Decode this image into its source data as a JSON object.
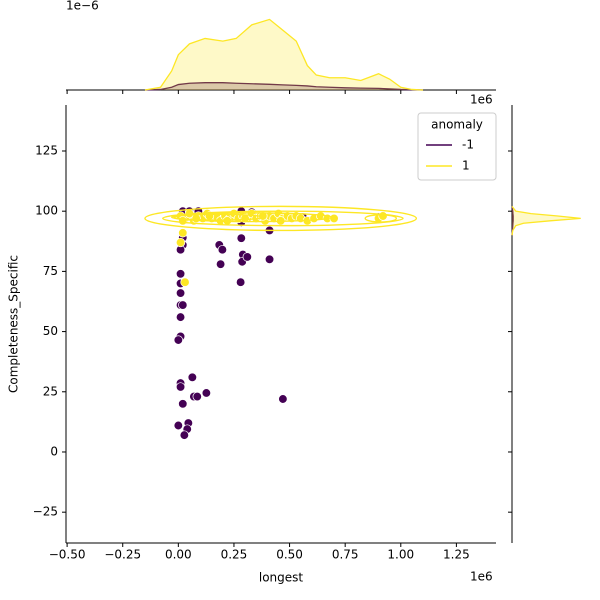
{
  "chart_data": {
    "type": "scatter",
    "x_label": "longest",
    "y_label": "Completeness_Specific",
    "x_offset": "1e6",
    "xlim": [
      -0.505,
      1.428
    ],
    "ylim": [
      -37.8,
      144.1
    ],
    "xticks": [
      {
        "value": -0.5,
        "label": "−0.50"
      },
      {
        "value": -0.25,
        "label": "−0.25"
      },
      {
        "value": 0,
        "label": "0.00"
      },
      0.25,
      {
        "value": 0.5,
        "label": "0.50"
      },
      0.75,
      {
        "value": 1,
        "label": "1.00"
      },
      1.25
    ],
    "yticks": [
      {
        "value": -25,
        "label": "−25"
      },
      0,
      25,
      50,
      75,
      100,
      125
    ],
    "legend": {
      "title": "anomaly",
      "loc": "upper right"
    },
    "series": [
      {
        "name": "-1",
        "color": "#440154",
        "x": [
          0.02,
          0.05,
          0.09,
          0.02,
          0.02,
          0.01,
          0.01,
          0.01,
          0.01,
          0.01,
          0.02,
          0.01,
          0.01,
          0,
          0.01,
          0.01,
          0.02,
          0.063,
          0.07,
          0.085,
          0.126,
          0,
          0.045,
          0.04,
          0.027,
          0.184,
          0.198,
          0.19,
          0.283,
          0.283,
          0.29,
          0.287,
          0.31,
          0.28,
          0.283,
          0.41,
          0.41,
          0.56,
          0.47,
          0.33,
          0.9
        ],
        "values": [
          100,
          100,
          100,
          89,
          86,
          84,
          74,
          70,
          66,
          61,
          61,
          56,
          48,
          46.5,
          28.6,
          27,
          20,
          31,
          23,
          23,
          24.5,
          11,
          12,
          9.5,
          7,
          86,
          84,
          78,
          95.4,
          88.8,
          82,
          79,
          81,
          70.5,
          100,
          92,
          80,
          97.5,
          22,
          99.6,
          97.5
        ]
      },
      {
        "name": "1",
        "color": "#fde725",
        "x": [
          0.01,
          0.03,
          0.05,
          0.07,
          0.09,
          0.11,
          0.13,
          0.15,
          0.17,
          0.19,
          0.21,
          0.23,
          0.25,
          0.27,
          0.29,
          0.31,
          0.33,
          0.35,
          0.37,
          0.39,
          0.41,
          0.43,
          0.45,
          0.47,
          0.49,
          0.51,
          0.53,
          0.55,
          0.58,
          0.61,
          0.64,
          0.67,
          0.7,
          0.9,
          0.92,
          0.02,
          0.08,
          0.14,
          0.22,
          0.3,
          0.38,
          0.46,
          0.02,
          0.01,
          0.03
        ],
        "values": [
          98,
          97,
          99,
          96,
          98,
          97,
          99,
          97,
          98,
          96,
          98,
          97,
          99,
          97,
          98,
          97,
          99,
          97,
          98,
          96,
          98,
          97,
          99,
          97,
          98,
          97,
          98,
          97,
          96,
          97,
          98,
          97,
          97,
          97,
          98,
          96,
          97,
          98,
          96,
          97,
          98,
          96,
          91,
          87,
          70.5
        ]
      }
    ],
    "contours": {
      "series": 1,
      "ellipses": [
        {
          "cx": 0.46,
          "cy": 97,
          "rx": 0.61,
          "ry": 5
        },
        {
          "cx": 0.47,
          "cy": 97,
          "rx": 0.54,
          "ry": 3
        },
        {
          "cx": 0.33,
          "cy": 97.5,
          "rx": 0.36,
          "ry": 1.8
        },
        {
          "cx": 0.18,
          "cy": 97.5,
          "rx": 0.2,
          "ry": 1.2
        },
        {
          "cx": 0.91,
          "cy": 97,
          "rx": 0.07,
          "ry": 1.5
        }
      ]
    },
    "marginal_x": {
      "offset_label": "1e−6",
      "x_offset": "1e6",
      "ylim": [
        0,
        2.8
      ],
      "x": [
        -0.15,
        -0.08,
        -0.03,
        0,
        0.05,
        0.12,
        0.2,
        0.26,
        0.33,
        0.41,
        0.47,
        0.53,
        0.58,
        0.62,
        0.68,
        0.75,
        0.82,
        0.9,
        0.95,
        1.0,
        1.05,
        1.1
      ],
      "series": [
        {
          "values": [
            0,
            0.02,
            0.1,
            0.2,
            0.25,
            0.27,
            0.27,
            0.25,
            0.23,
            0.21,
            0.19,
            0.17,
            0.15,
            0.12,
            0.1,
            0.08,
            0.07,
            0.06,
            0.04,
            0.02,
            0.01,
            0
          ]
        },
        {
          "values": [
            0,
            0.1,
            0.7,
            1.3,
            1.7,
            1.9,
            1.8,
            1.9,
            2.4,
            2.6,
            2.2,
            1.8,
            0.9,
            0.55,
            0.45,
            0.45,
            0.35,
            0.6,
            0.4,
            0.1,
            0.02,
            0
          ]
        }
      ]
    },
    "marginal_y": {
      "xlim": [
        0,
        1.1
      ],
      "y": [
        90,
        92,
        94,
        95,
        96,
        97,
        98,
        99,
        100,
        102
      ],
      "series": [
        {
          "values": [
            0,
            0.005,
            0.01,
            0.012,
            0.015,
            0.015,
            0.015,
            0.012,
            0.01,
            0
          ]
        },
        {
          "values": [
            0,
            0.01,
            0.05,
            0.15,
            0.5,
            0.9,
            0.6,
            0.25,
            0.05,
            0
          ]
        }
      ]
    }
  }
}
